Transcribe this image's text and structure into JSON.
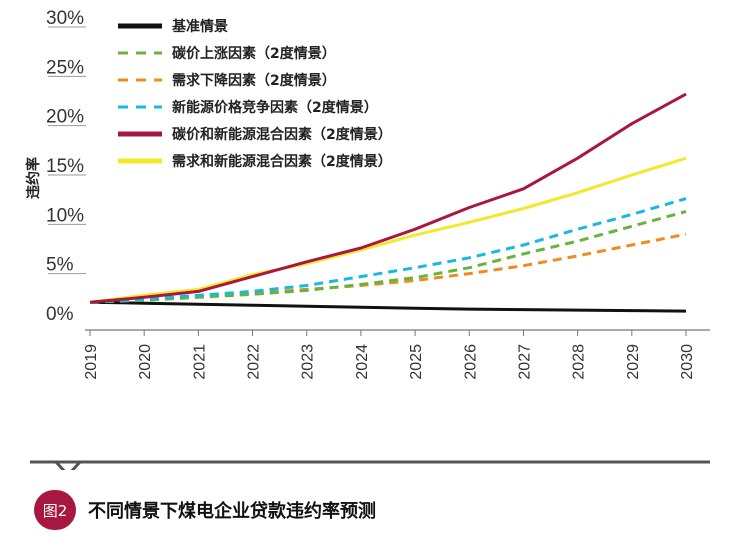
{
  "chart_data": {
    "type": "line",
    "ylabel": "违约率",
    "categories": [
      "2019",
      "2020",
      "2021",
      "2022",
      "2023",
      "2024",
      "2025",
      "2026",
      "2027",
      "2028",
      "2029",
      "2030"
    ],
    "yticks": [
      "0%",
      "5%",
      "10%",
      "15%",
      "20%",
      "25%",
      "30%"
    ],
    "ylim": [
      0,
      30
    ],
    "legend_position": "top-left",
    "series": [
      {
        "name": "基准情景",
        "color": "#111111",
        "dash": "solid",
        "values": [
          1.8,
          1.7,
          1.6,
          1.5,
          1.4,
          1.3,
          1.2,
          1.1,
          1.05,
          1.0,
          0.95,
          0.9
        ]
      },
      {
        "name": "碳价上涨因素（2度情景）",
        "color": "#6ab23f",
        "dash": "dashed",
        "values": [
          1.8,
          2.0,
          2.3,
          2.6,
          3.0,
          3.6,
          4.3,
          5.3,
          6.7,
          8.0,
          9.5,
          11.0
        ]
      },
      {
        "name": "需求下降因素（2度情景）",
        "color": "#f08b1d",
        "dash": "dashed",
        "values": [
          1.8,
          2.1,
          2.4,
          2.7,
          3.1,
          3.5,
          4.0,
          4.7,
          5.5,
          6.5,
          7.6,
          8.7
        ]
      },
      {
        "name": "新能源价格竞争因素（2度情景）",
        "color": "#19b8e0",
        "dash": "dashed",
        "values": [
          1.8,
          2.1,
          2.5,
          2.9,
          3.5,
          4.4,
          5.3,
          6.3,
          7.6,
          9.2,
          10.7,
          12.3
        ]
      },
      {
        "name": "碳价和新能源混合因素（2度情景）",
        "color": "#a8173f",
        "dash": "solid",
        "values": [
          1.8,
          2.3,
          2.9,
          4.4,
          5.9,
          7.3,
          9.2,
          11.4,
          13.3,
          16.4,
          19.9,
          22.9
        ]
      },
      {
        "name": "需求和新能源混合因素（2度情景）",
        "color": "#f2e92a",
        "dash": "solid",
        "values": [
          1.8,
          2.5,
          3.1,
          4.6,
          5.7,
          7.1,
          8.6,
          9.9,
          11.3,
          12.9,
          14.7,
          16.4
        ]
      }
    ]
  },
  "figure": {
    "badge": "图2",
    "caption": "不同情景下煤电企业贷款违约率预测"
  }
}
